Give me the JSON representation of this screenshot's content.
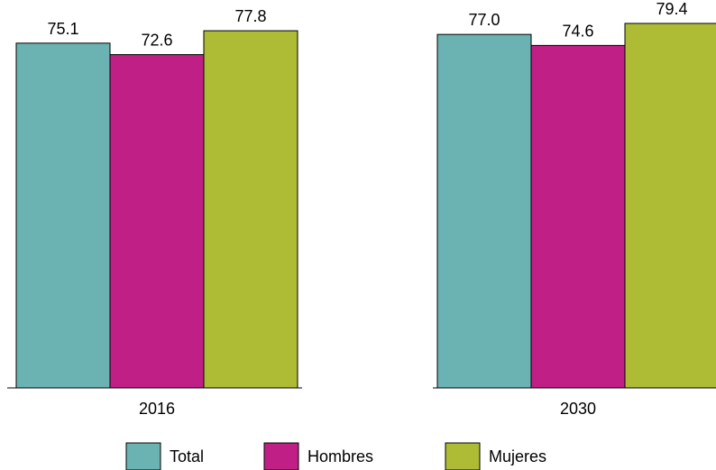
{
  "chart_data": {
    "type": "bar",
    "categories": [
      "2016",
      "2030"
    ],
    "series": [
      {
        "name": "Total",
        "values": [
          75.1,
          77.0
        ],
        "labels": [
          "75.1",
          "77.0"
        ],
        "color": "#6AB3B2"
      },
      {
        "name": "Hombres",
        "values": [
          72.6,
          74.6
        ],
        "labels": [
          "72.6",
          "74.6"
        ],
        "color": "#C02085"
      },
      {
        "name": "Mujeres",
        "values": [
          77.8,
          79.4
        ],
        "labels": [
          "77.8",
          "79.4"
        ],
        "color": "#ADBB35"
      }
    ],
    "title": "",
    "xlabel": "",
    "ylabel": "",
    "ylim": [
      0,
      84.5
    ],
    "grid": false,
    "legend": "bottom"
  }
}
